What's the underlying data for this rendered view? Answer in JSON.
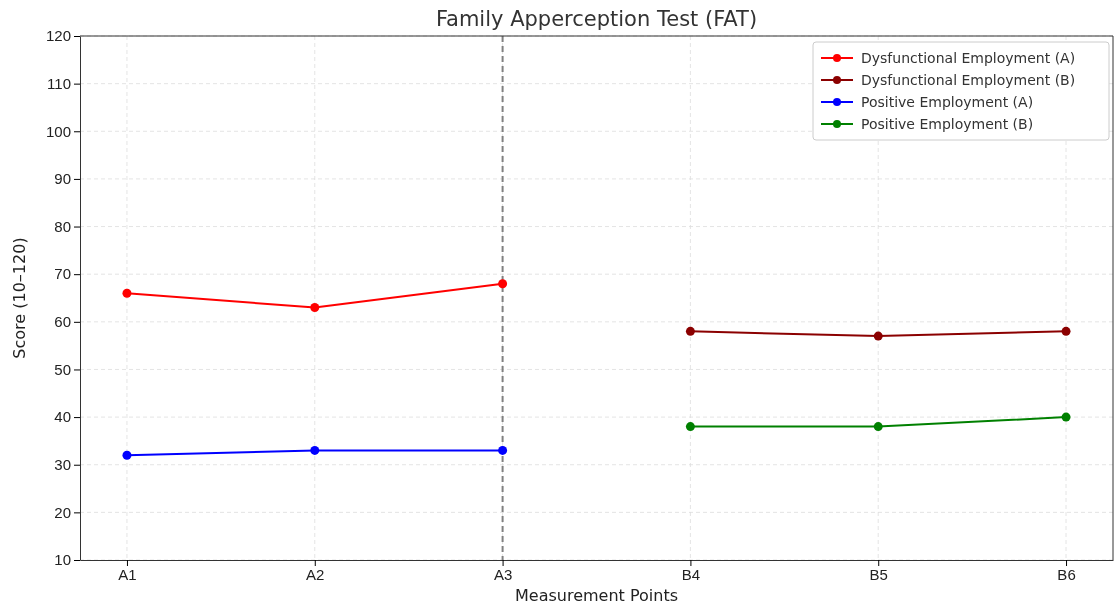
{
  "chart_data": {
    "type": "line",
    "title": "Family Apperception Test (FAT)",
    "xlabel": "Measurement Points",
    "ylabel": "Score (10–120)",
    "categories": [
      "A1",
      "A2",
      "A3",
      "B4",
      "B5",
      "B6"
    ],
    "series": [
      {
        "name": "Dysfunctional Employment (A)",
        "color": "#ff0000",
        "values": [
          66,
          63,
          68,
          null,
          null,
          null
        ]
      },
      {
        "name": "Dysfunctional Employment (B)",
        "color": "#8b0000",
        "values": [
          null,
          null,
          null,
          58,
          57,
          58
        ]
      },
      {
        "name": "Positive Employment (A)",
        "color": "#0000ff",
        "values": [
          32,
          33,
          33,
          null,
          null,
          null
        ]
      },
      {
        "name": "Positive Employment (B)",
        "color": "#008000",
        "values": [
          null,
          null,
          null,
          38,
          38,
          40
        ]
      }
    ],
    "ylim": [
      10,
      120
    ],
    "yticks": [
      10,
      20,
      30,
      40,
      50,
      60,
      70,
      80,
      90,
      100,
      110,
      120
    ],
    "ref_lines": [
      {
        "axis": "x",
        "value": "A3",
        "color": "#808080",
        "line_style": "dashed"
      }
    ],
    "grid": true,
    "legend": "top right",
    "marker": "circle"
  }
}
